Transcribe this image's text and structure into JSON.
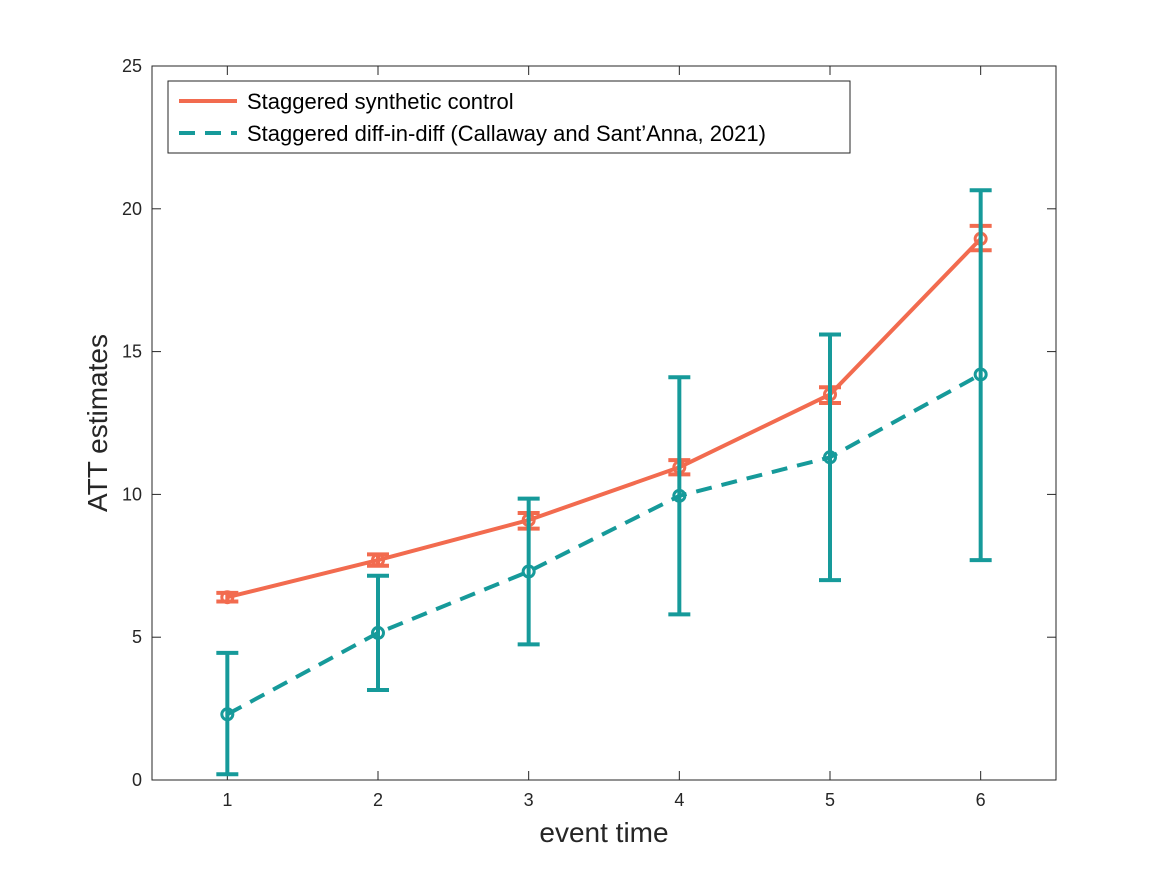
{
  "chart_data": {
    "type": "line",
    "xlabel": "event time",
    "ylabel": "ATT estimates",
    "xlim": [
      0.5,
      6.5
    ],
    "ylim": [
      0,
      25
    ],
    "xticks": [
      "1",
      "2",
      "3",
      "4",
      "5",
      "6"
    ],
    "yticks": [
      "0",
      "5",
      "10",
      "15",
      "20",
      "25"
    ],
    "grid": false,
    "legend_position": "top-left",
    "x": [
      1,
      2,
      3,
      4,
      5,
      6
    ],
    "series": [
      {
        "name": "Staggered synthetic control",
        "color": "#f26b4f",
        "line_style": "solid",
        "marker": "circle",
        "values": [
          6.4,
          7.7,
          9.1,
          10.95,
          13.5,
          18.95
        ],
        "error_low": [
          6.25,
          7.5,
          8.8,
          10.7,
          13.2,
          18.55
        ],
        "error_high": [
          6.55,
          7.9,
          9.35,
          11.2,
          13.75,
          19.4
        ]
      },
      {
        "name": "Staggered diff-in-diff (Callaway and Sant’Anna, 2021)",
        "color": "#169a9a",
        "line_style": "dashed",
        "marker": "circle",
        "values": [
          2.3,
          5.15,
          7.3,
          9.95,
          11.3,
          14.2
        ],
        "error_low": [
          0.2,
          3.15,
          4.75,
          5.8,
          7.0,
          7.7
        ],
        "error_high": [
          4.45,
          7.15,
          9.85,
          14.1,
          15.6,
          20.65
        ]
      }
    ]
  }
}
